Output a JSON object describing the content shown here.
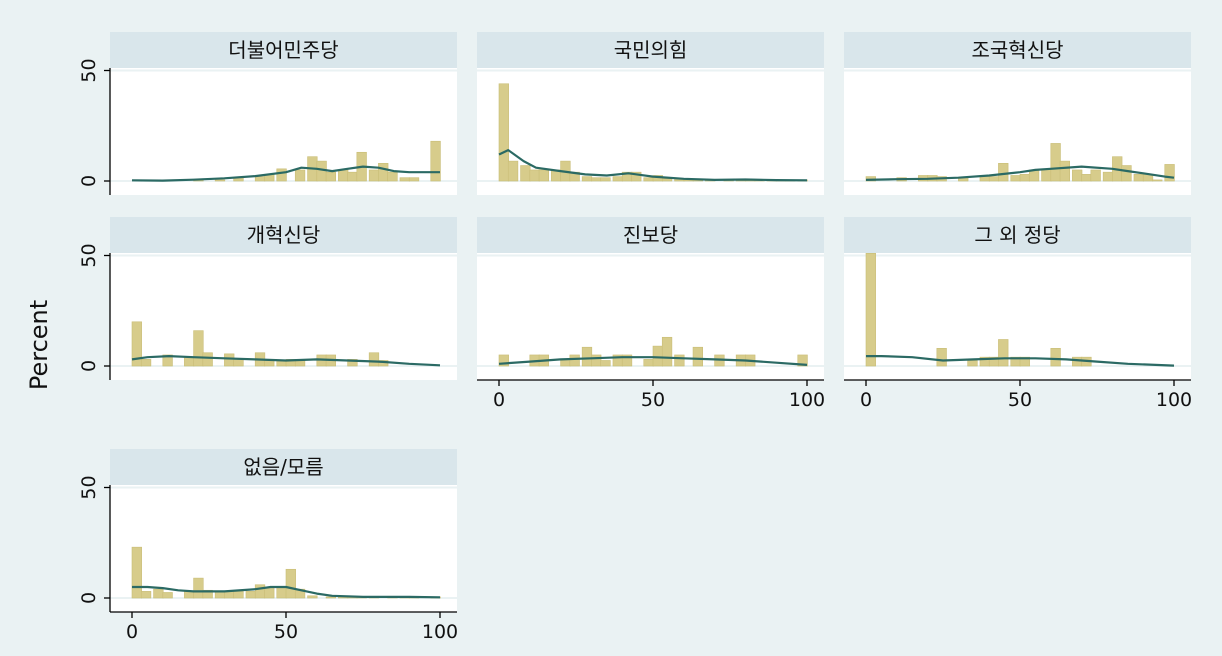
{
  "chart_data": {
    "type": "bar",
    "ylabel": "Percent",
    "xlim": [
      0,
      100
    ],
    "ylim": [
      0,
      50
    ],
    "xticks": [
      0,
      50,
      100
    ],
    "yticks": [
      0,
      50
    ],
    "bar_width": 3.33,
    "colors": {
      "bar": "#d7cc8b",
      "bar_edge": "#c9bd76",
      "line": "#2b6a64",
      "strip": "#d9e6eb",
      "plot_bg": "#ffffff",
      "grid": "#eaf2f3",
      "background": "#eaf2f3"
    },
    "panels": [
      {
        "title": "더불어민주당",
        "bars": [
          [
            20,
            0.5
          ],
          [
            27,
            0.5
          ],
          [
            33,
            1.5
          ],
          [
            40,
            2
          ],
          [
            43,
            3
          ],
          [
            47,
            5.5
          ],
          [
            53,
            5
          ],
          [
            57,
            11
          ],
          [
            60,
            9
          ],
          [
            63,
            4
          ],
          [
            67,
            5
          ],
          [
            70,
            4
          ],
          [
            73,
            13
          ],
          [
            77,
            5
          ],
          [
            80,
            8
          ],
          [
            83,
            4
          ],
          [
            87,
            1.5
          ],
          [
            90,
            1.5
          ],
          [
            97,
            18
          ]
        ],
        "density": [
          [
            0,
            0.3
          ],
          [
            10,
            0.2
          ],
          [
            20,
            0.6
          ],
          [
            30,
            1.2
          ],
          [
            40,
            2.2
          ],
          [
            50,
            4
          ],
          [
            55,
            6
          ],
          [
            60,
            5.5
          ],
          [
            65,
            4.5
          ],
          [
            70,
            5.5
          ],
          [
            75,
            6.5
          ],
          [
            80,
            6
          ],
          [
            85,
            4.5
          ],
          [
            90,
            4
          ],
          [
            100,
            4
          ]
        ]
      },
      {
        "title": "국민의힘",
        "bars": [
          [
            0,
            44
          ],
          [
            3,
            9
          ],
          [
            7,
            7
          ],
          [
            10,
            5
          ],
          [
            13,
            5
          ],
          [
            17,
            5
          ],
          [
            20,
            9
          ],
          [
            23,
            4
          ],
          [
            27,
            2
          ],
          [
            30,
            1.5
          ],
          [
            33,
            1.5
          ],
          [
            37,
            2
          ],
          [
            40,
            4
          ],
          [
            43,
            4
          ],
          [
            47,
            1.5
          ],
          [
            50,
            2.5
          ],
          [
            53,
            1
          ],
          [
            57,
            1
          ],
          [
            60,
            0.5
          ],
          [
            63,
            0.5
          ],
          [
            67,
            0.5
          ],
          [
            73,
            0.5
          ],
          [
            77,
            0.5
          ],
          [
            80,
            0.5
          ],
          [
            83,
            0.5
          ],
          [
            87,
            0.5
          ],
          [
            90,
            0.5
          ],
          [
            93,
            0.5
          ],
          [
            97,
            0.5
          ]
        ],
        "density": [
          [
            0,
            12
          ],
          [
            3,
            14
          ],
          [
            8,
            9
          ],
          [
            12,
            6
          ],
          [
            20,
            4.5
          ],
          [
            28,
            3
          ],
          [
            35,
            2.5
          ],
          [
            42,
            3.5
          ],
          [
            50,
            2
          ],
          [
            60,
            1
          ],
          [
            70,
            0.5
          ],
          [
            80,
            0.7
          ],
          [
            90,
            0.4
          ],
          [
            100,
            0.3
          ]
        ]
      },
      {
        "title": "조국혁신당",
        "bars": [
          [
            0,
            2
          ],
          [
            10,
            1.5
          ],
          [
            17,
            2.5
          ],
          [
            20,
            2.5
          ],
          [
            23,
            2
          ],
          [
            30,
            1.5
          ],
          [
            37,
            2
          ],
          [
            40,
            2
          ],
          [
            43,
            8
          ],
          [
            47,
            2.5
          ],
          [
            50,
            3
          ],
          [
            53,
            5
          ],
          [
            57,
            5.5
          ],
          [
            60,
            17
          ],
          [
            63,
            9
          ],
          [
            67,
            5
          ],
          [
            70,
            3
          ],
          [
            73,
            5
          ],
          [
            77,
            4
          ],
          [
            80,
            11
          ],
          [
            83,
            7
          ],
          [
            87,
            3
          ],
          [
            90,
            3
          ],
          [
            93,
            0.5
          ],
          [
            97,
            7.5
          ]
        ],
        "density": [
          [
            0,
            0.5
          ],
          [
            10,
            0.8
          ],
          [
            20,
            1
          ],
          [
            30,
            1.5
          ],
          [
            40,
            2.5
          ],
          [
            50,
            4
          ],
          [
            55,
            5
          ],
          [
            60,
            5.5
          ],
          [
            70,
            6.5
          ],
          [
            80,
            5.5
          ],
          [
            85,
            4.5
          ],
          [
            90,
            3.5
          ],
          [
            97,
            2
          ],
          [
            100,
            1.5
          ]
        ]
      },
      {
        "title": "개혁신당",
        "bars": [
          [
            0,
            20
          ],
          [
            3,
            3
          ],
          [
            10,
            5
          ],
          [
            17,
            4
          ],
          [
            20,
            16
          ],
          [
            23,
            6
          ],
          [
            30,
            5.5
          ],
          [
            33,
            3
          ],
          [
            40,
            6
          ],
          [
            43,
            2.5
          ],
          [
            47,
            2.5
          ],
          [
            50,
            3
          ],
          [
            53,
            3
          ],
          [
            60,
            5
          ],
          [
            63,
            5
          ],
          [
            70,
            3
          ],
          [
            77,
            6
          ],
          [
            80,
            2.5
          ]
        ],
        "density": [
          [
            0,
            3
          ],
          [
            5,
            4
          ],
          [
            12,
            4.5
          ],
          [
            20,
            4
          ],
          [
            30,
            3.5
          ],
          [
            40,
            3
          ],
          [
            50,
            2.5
          ],
          [
            60,
            3
          ],
          [
            70,
            2.5
          ],
          [
            80,
            2
          ],
          [
            90,
            1
          ],
          [
            100,
            0.3
          ]
        ]
      },
      {
        "title": "진보당",
        "bars": [
          [
            0,
            5
          ],
          [
            10,
            5
          ],
          [
            13,
            5
          ],
          [
            20,
            2.5
          ],
          [
            23,
            5
          ],
          [
            27,
            8.5
          ],
          [
            30,
            5
          ],
          [
            33,
            2.5
          ],
          [
            37,
            5
          ],
          [
            40,
            5
          ],
          [
            47,
            3
          ],
          [
            50,
            9
          ],
          [
            53,
            13
          ],
          [
            57,
            5
          ],
          [
            63,
            8.5
          ],
          [
            70,
            5
          ],
          [
            77,
            5
          ],
          [
            80,
            5
          ],
          [
            97,
            5
          ]
        ],
        "density": [
          [
            0,
            1
          ],
          [
            10,
            2
          ],
          [
            20,
            3
          ],
          [
            30,
            3.5
          ],
          [
            40,
            4
          ],
          [
            50,
            4
          ],
          [
            60,
            3.5
          ],
          [
            70,
            3
          ],
          [
            80,
            2.5
          ],
          [
            90,
            1.5
          ],
          [
            100,
            0.5
          ]
        ]
      },
      {
        "title": "그 외 정당",
        "bars": [
          [
            0,
            51
          ],
          [
            23,
            8
          ],
          [
            33,
            2.5
          ],
          [
            37,
            4
          ],
          [
            40,
            4
          ],
          [
            43,
            12
          ],
          [
            47,
            4
          ],
          [
            50,
            4
          ],
          [
            60,
            8
          ],
          [
            67,
            4
          ],
          [
            70,
            4
          ]
        ],
        "density": [
          [
            0,
            4.5
          ],
          [
            5,
            4.5
          ],
          [
            15,
            4
          ],
          [
            25,
            2.5
          ],
          [
            35,
            3
          ],
          [
            45,
            3.5
          ],
          [
            55,
            3.5
          ],
          [
            65,
            3
          ],
          [
            75,
            2
          ],
          [
            85,
            1
          ],
          [
            100,
            0.2
          ]
        ]
      },
      {
        "title": "없음/모름",
        "bars": [
          [
            0,
            23
          ],
          [
            3,
            3
          ],
          [
            7,
            4
          ],
          [
            10,
            2.5
          ],
          [
            17,
            3
          ],
          [
            20,
            9
          ],
          [
            23,
            3.5
          ],
          [
            27,
            3
          ],
          [
            30,
            3
          ],
          [
            33,
            3
          ],
          [
            37,
            3
          ],
          [
            40,
            6
          ],
          [
            43,
            5
          ],
          [
            47,
            5
          ],
          [
            50,
            13
          ],
          [
            53,
            4
          ],
          [
            57,
            1
          ],
          [
            63,
            0.5
          ],
          [
            67,
            0.5
          ],
          [
            70,
            0.5
          ],
          [
            73,
            0.5
          ],
          [
            77,
            0.5
          ],
          [
            83,
            0.5
          ],
          [
            87,
            0.5
          ],
          [
            90,
            0.5
          ],
          [
            97,
            0.5
          ]
        ],
        "density": [
          [
            0,
            5
          ],
          [
            5,
            5
          ],
          [
            10,
            4.5
          ],
          [
            15,
            3.5
          ],
          [
            20,
            3
          ],
          [
            30,
            3
          ],
          [
            40,
            4
          ],
          [
            45,
            5
          ],
          [
            50,
            5
          ],
          [
            55,
            3.5
          ],
          [
            60,
            2
          ],
          [
            65,
            1
          ],
          [
            75,
            0.5
          ],
          [
            90,
            0.5
          ],
          [
            100,
            0.3
          ]
        ]
      }
    ]
  }
}
